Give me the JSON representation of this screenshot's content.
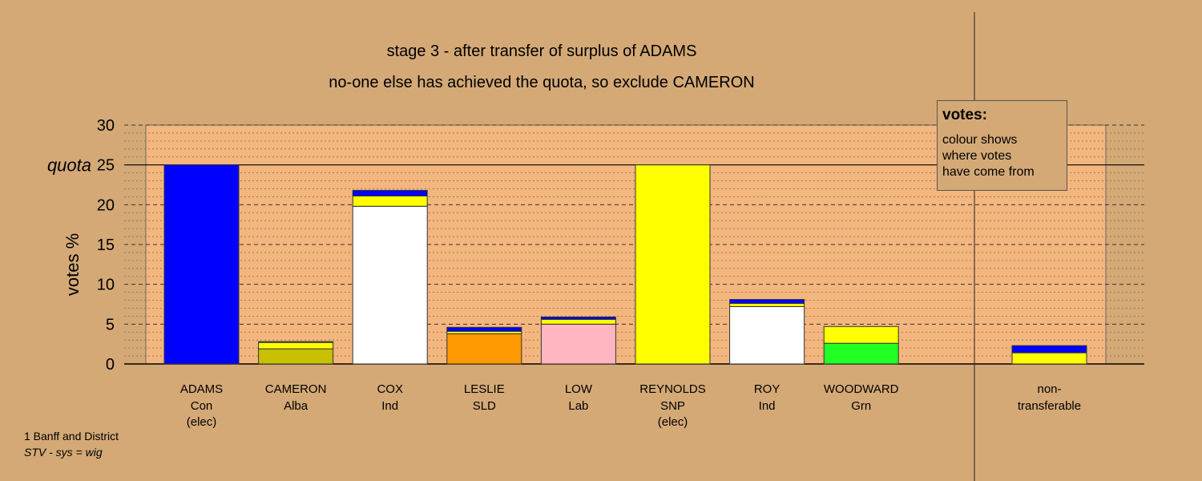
{
  "titles": {
    "line1": "stage 3 - after transfer of surplus of ADAMS",
    "line2": "no-one else has achieved the quota, so exclude CAMERON"
  },
  "legend": {
    "heading": "votes:",
    "lines": [
      "colour shows",
      "where votes",
      "have come from"
    ]
  },
  "footer": {
    "line1": "1 Banff and District",
    "line2": "STV - sys = wig"
  },
  "colors": {
    "background": "#d4a976",
    "plot_band": "#f3b67e",
    "Con": "#0000ff",
    "Alba": "#c8c000",
    "Ind": "#ffffff",
    "SLD": "#ff9900",
    "Lab": "#ffb6c1",
    "SNP": "#ffff00",
    "Grn": "#22ff22"
  },
  "chart_data": {
    "type": "bar",
    "stacked": true,
    "ylabel": "votes %",
    "ylim": [
      0,
      30
    ],
    "yticks": [
      0,
      5,
      10,
      15,
      20,
      25,
      30
    ],
    "quota": 25,
    "quota_label": "quota",
    "grid": true,
    "candidates": [
      {
        "name": "ADAMS",
        "party": "Con",
        "note": "(elec)",
        "segments": [
          {
            "from": "Con",
            "value": 25.0
          }
        ]
      },
      {
        "name": "CAMERON",
        "party": "Alba",
        "note": "",
        "segments": [
          {
            "from": "Alba",
            "value": 1.9
          },
          {
            "from": "SNP",
            "value": 0.8
          },
          {
            "from": "Con",
            "value": 0.1
          }
        ]
      },
      {
        "name": "COX",
        "party": "Ind",
        "note": "",
        "segments": [
          {
            "from": "Ind",
            "value": 19.8
          },
          {
            "from": "SNP",
            "value": 1.3
          },
          {
            "from": "Con",
            "value": 0.7
          }
        ]
      },
      {
        "name": "LESLIE",
        "party": "SLD",
        "note": "",
        "segments": [
          {
            "from": "SLD",
            "value": 3.8
          },
          {
            "from": "SNP",
            "value": 0.3
          },
          {
            "from": "Con",
            "value": 0.5
          }
        ]
      },
      {
        "name": "LOW",
        "party": "Lab",
        "note": "",
        "segments": [
          {
            "from": "Lab",
            "value": 5.0
          },
          {
            "from": "SNP",
            "value": 0.6
          },
          {
            "from": "Con",
            "value": 0.3
          }
        ]
      },
      {
        "name": "REYNOLDS",
        "party": "SNP",
        "note": "(elec)",
        "segments": [
          {
            "from": "SNP",
            "value": 25.0
          }
        ]
      },
      {
        "name": "ROY",
        "party": "Ind",
        "note": "",
        "segments": [
          {
            "from": "Ind",
            "value": 7.2
          },
          {
            "from": "SNP",
            "value": 0.4
          },
          {
            "from": "Con",
            "value": 0.5
          }
        ]
      },
      {
        "name": "WOODWARD",
        "party": "Grn",
        "note": "",
        "segments": [
          {
            "from": "Grn",
            "value": 2.6
          },
          {
            "from": "SNP",
            "value": 2.1
          },
          {
            "from": "Con",
            "value": 0.0
          }
        ]
      }
    ],
    "non_transferable": {
      "label_line1": "non-",
      "label_line2": "transferable",
      "segments": [
        {
          "from": "SNP",
          "value": 1.4
        },
        {
          "from": "Con",
          "value": 0.9
        }
      ]
    }
  }
}
